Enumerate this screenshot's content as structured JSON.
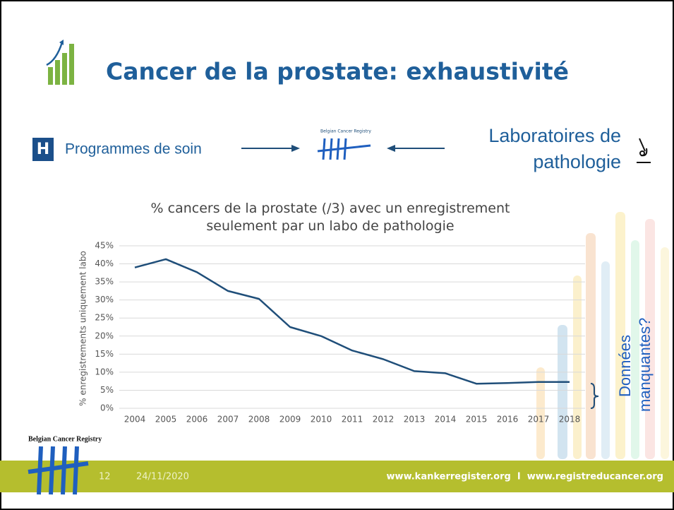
{
  "slide": {
    "title": "Cancer de la prostate: exhaustivité",
    "left_label": "Programmes de soin",
    "right_label_1": "Laboratoires de",
    "right_label_2": "pathologie",
    "center_logo_text": "Belgian Cancer Registry",
    "bottom_logo_text": "Belgian Cancer Registry",
    "page_number": "12",
    "date": "24/11/2020",
    "footer_url": "www.kankerregister.org  I  www.registreducancer.org",
    "annotation": "Données manquantes?"
  },
  "chart_data": {
    "type": "line",
    "title": "% cancers de la prostate (/3) avec un enregistrement seulement par un labo de pathologie",
    "y_label": "% enregistrements uniquement labo",
    "categories": [
      "2004",
      "2005",
      "2006",
      "2007",
      "2008",
      "2009",
      "2010",
      "2011",
      "2012",
      "2013",
      "2014",
      "2015",
      "2016",
      "2017",
      "2018"
    ],
    "values": [
      39,
      41.3,
      37.7,
      32.5,
      30.3,
      22.5,
      20,
      16,
      13.6,
      10.3,
      9.7,
      6.8,
      7,
      7.3,
      7.3
    ],
    "color": "#1f4e79",
    "ylim": [
      0,
      45
    ],
    "yticks": [
      {
        "value": 0,
        "label": "0%"
      },
      {
        "value": 5,
        "label": "5%"
      },
      {
        "value": 10,
        "label": "10%"
      },
      {
        "value": 15,
        "label": "15%"
      },
      {
        "value": 20,
        "label": "20%"
      },
      {
        "value": 25,
        "label": "25%"
      },
      {
        "value": 30,
        "label": "30%"
      },
      {
        "value": 35,
        "label": "35%"
      },
      {
        "value": 40,
        "label": "40%"
      },
      {
        "value": 45,
        "label": "45%"
      }
    ],
    "grid": true
  }
}
